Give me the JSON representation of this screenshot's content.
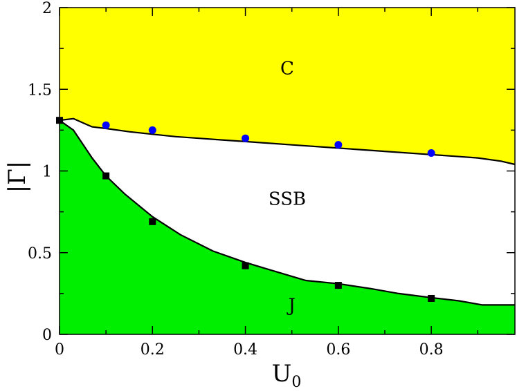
{
  "chart_data": {
    "type": "area",
    "title": "",
    "xlabel": "U",
    "xlabel_subscript": "0",
    "ylabel": "|Γ|",
    "xlim": [
      0,
      0.98
    ],
    "ylim": [
      0,
      2
    ],
    "x_ticks": [
      0,
      0.2,
      0.4,
      0.6,
      0.8
    ],
    "x_tick_labels": [
      "0",
      "0.2",
      "0.4",
      "0.6",
      "0.8"
    ],
    "y_ticks": [
      0,
      0.5,
      1,
      1.5,
      2
    ],
    "y_tick_labels": [
      "0",
      "0.5",
      "1",
      "1.5",
      "2"
    ],
    "grid": false,
    "colors": {
      "upper_region": "#ffff00",
      "middle_region": "#ffffff",
      "lower_region": "#00ee00",
      "blue_points": "#0000ff",
      "black_points": "#000000"
    },
    "regions": [
      {
        "label": "C",
        "x": 0.49,
        "y": 1.63
      },
      {
        "label": "SSB",
        "x": 0.49,
        "y": 0.83
      },
      {
        "label": "J",
        "x": 0.5,
        "y": 0.18
      }
    ],
    "upper_boundary": {
      "x": [
        0,
        0.03,
        0.07,
        0.1,
        0.15,
        0.2,
        0.25,
        0.3,
        0.35,
        0.4,
        0.5,
        0.6,
        0.7,
        0.8,
        0.85,
        0.9,
        0.95,
        0.98
      ],
      "y": [
        1.31,
        1.32,
        1.27,
        1.26,
        1.24,
        1.225,
        1.21,
        1.2,
        1.19,
        1.18,
        1.16,
        1.14,
        1.12,
        1.1,
        1.09,
        1.08,
        1.06,
        1.04
      ]
    },
    "lower_boundary": {
      "x": [
        0,
        0.03,
        0.07,
        0.1,
        0.14,
        0.2,
        0.26,
        0.33,
        0.4,
        0.47,
        0.53,
        0.6,
        0.67,
        0.73,
        0.8,
        0.86,
        0.91,
        0.98
      ],
      "y": [
        1.31,
        1.25,
        1.08,
        0.97,
        0.86,
        0.72,
        0.61,
        0.51,
        0.44,
        0.38,
        0.33,
        0.31,
        0.28,
        0.25,
        0.225,
        0.205,
        0.18,
        0.18
      ]
    },
    "series": [
      {
        "marker": "circle",
        "color": "#0000ff",
        "x": [
          0.1,
          0.2,
          0.4,
          0.6,
          0.8
        ],
        "y": [
          1.28,
          1.25,
          1.2,
          1.16,
          1.11
        ]
      },
      {
        "marker": "square",
        "color": "#000000",
        "x": [
          0,
          0.1,
          0.2,
          0.4,
          0.6,
          0.8
        ],
        "y": [
          1.31,
          0.97,
          0.69,
          0.42,
          0.3,
          0.22
        ]
      }
    ]
  }
}
